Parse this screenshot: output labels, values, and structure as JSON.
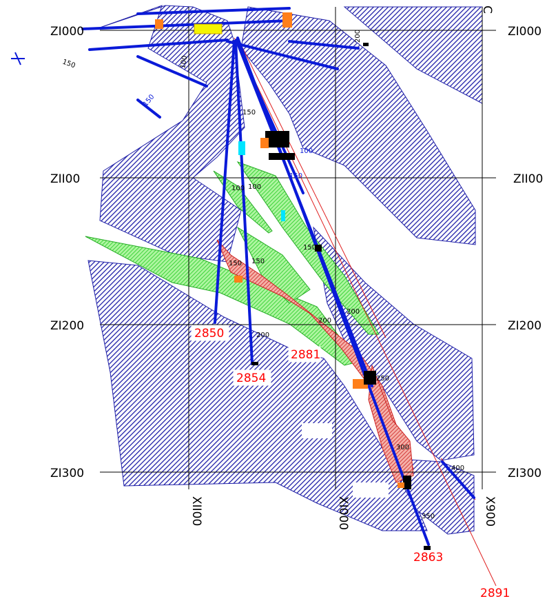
{
  "grid": {
    "z_labels": [
      "ZI000",
      "ZII00",
      "ZI200",
      "ZI300"
    ],
    "x_labels": [
      "XII00",
      "XI000",
      "X900"
    ],
    "colors": {
      "lines": "#000000",
      "labels": "#000000"
    }
  },
  "holes": [
    {
      "id": "2850",
      "color": "#ff0000",
      "boxed": true
    },
    {
      "id": "2854",
      "color": "#ff0000",
      "boxed": true
    },
    {
      "id": "2881",
      "color": "#ff0000",
      "boxed": true
    },
    {
      "id": "2863",
      "color": "#ff0000",
      "boxed": false
    },
    {
      "id": "2891",
      "color": "#ff0000",
      "boxed": false
    }
  ],
  "depth_marks": [
    "150",
    "200",
    "150",
    "100",
    "100",
    "100",
    "100",
    "150",
    "150",
    "150",
    "150",
    "200",
    "200",
    "200",
    "250",
    "300",
    "350",
    "400",
    "150"
  ],
  "colors": {
    "hatch_blue": "#1f1fa8",
    "hatch_green": "#22cc22",
    "hatch_red": "#cc2020",
    "trace_blue": "#0a1ad8",
    "trace_red": "#e02020",
    "intercept_orange": "#ff7f1a",
    "intercept_black": "#000000",
    "intercept_yellow": "#f5f500",
    "intercept_cyan": "#00e5ff"
  },
  "icons": {
    "north_marker": "cross-arrow-icon"
  }
}
